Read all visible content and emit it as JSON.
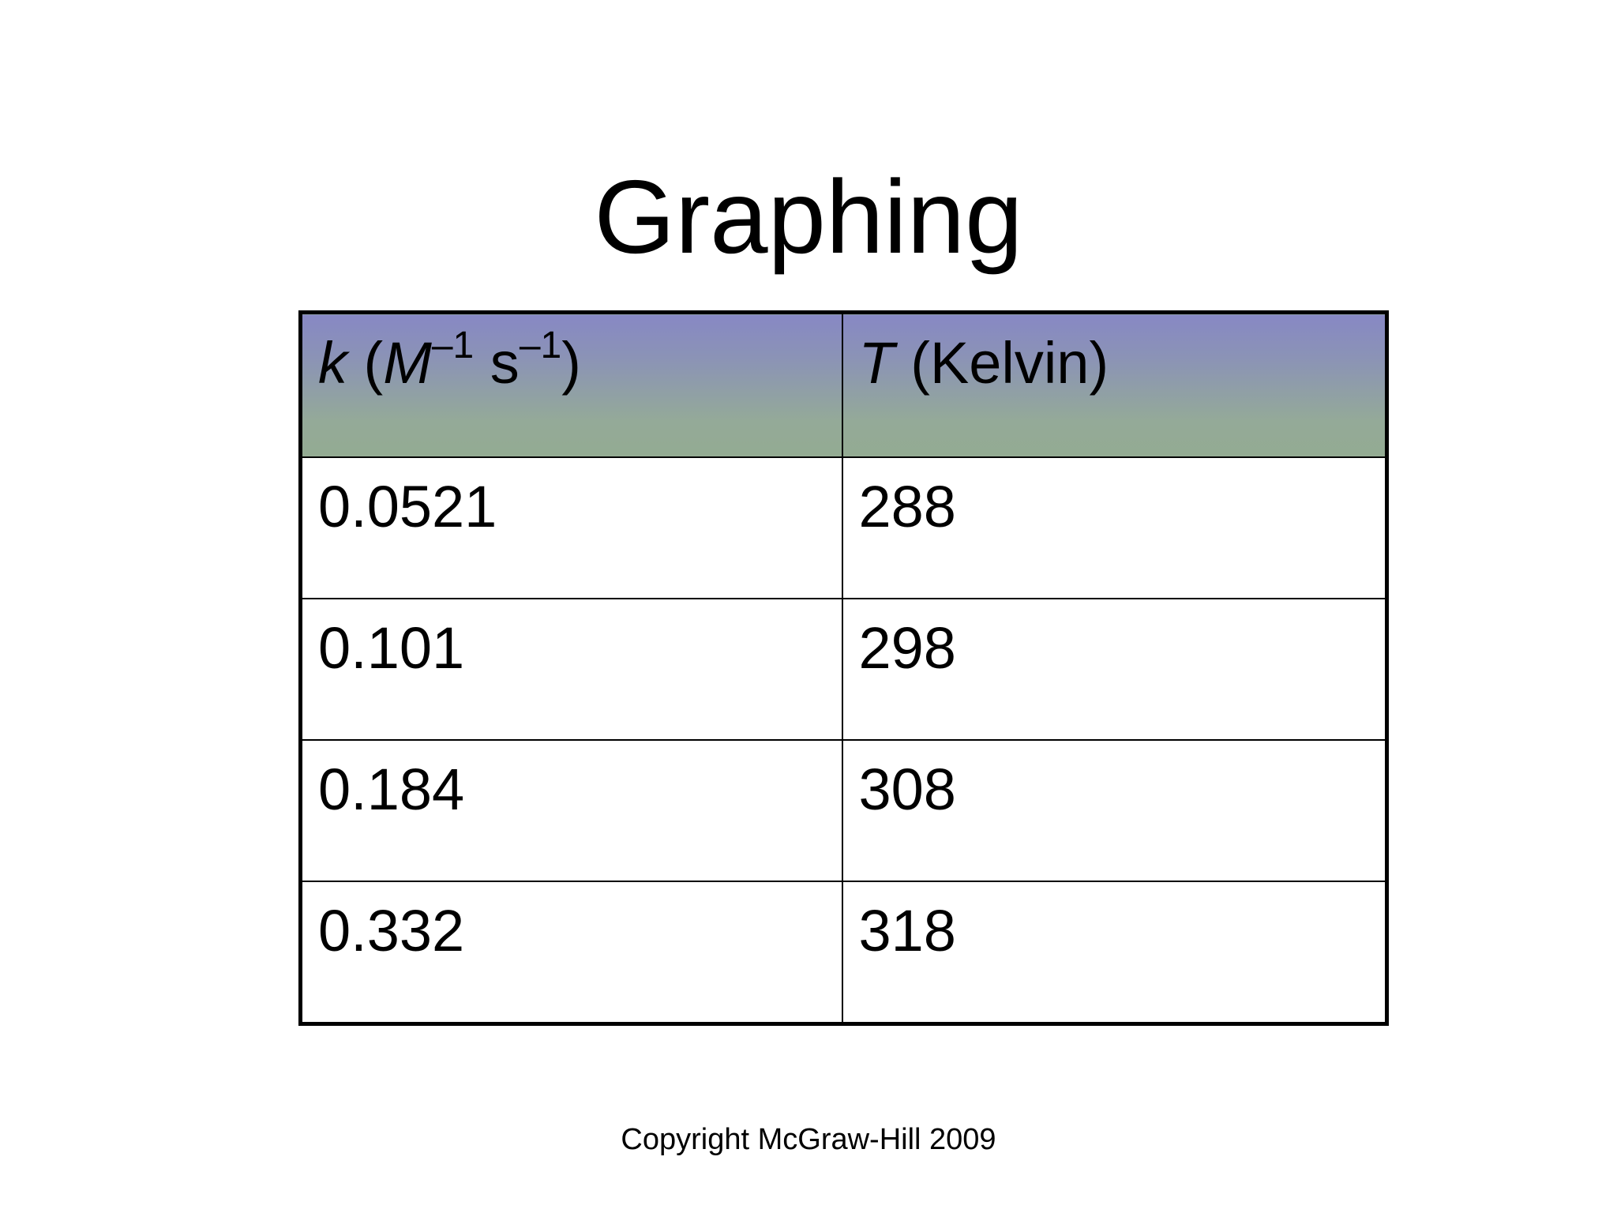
{
  "slide": {
    "title": "Graphing",
    "copyright": "Copyright McGraw-Hill 2009"
  },
  "table": {
    "headers": {
      "k": {
        "symbol": "k",
        "open": " (",
        "unit_m": "M",
        "exp_m": "–1",
        "unit_s": " s",
        "exp_s": "–1",
        "close": ")"
      },
      "t": {
        "symbol": "T",
        "unit": " (Kelvin)"
      }
    },
    "rows": [
      {
        "k": "0.0521",
        "t": "288"
      },
      {
        "k": "0.101",
        "t": "298"
      },
      {
        "k": "0.184",
        "t": "308"
      },
      {
        "k": "0.332",
        "t": "318"
      }
    ],
    "colors": {
      "header_top": "#8788c4",
      "header_bottom": "#93ab92",
      "border": "#000000"
    }
  }
}
